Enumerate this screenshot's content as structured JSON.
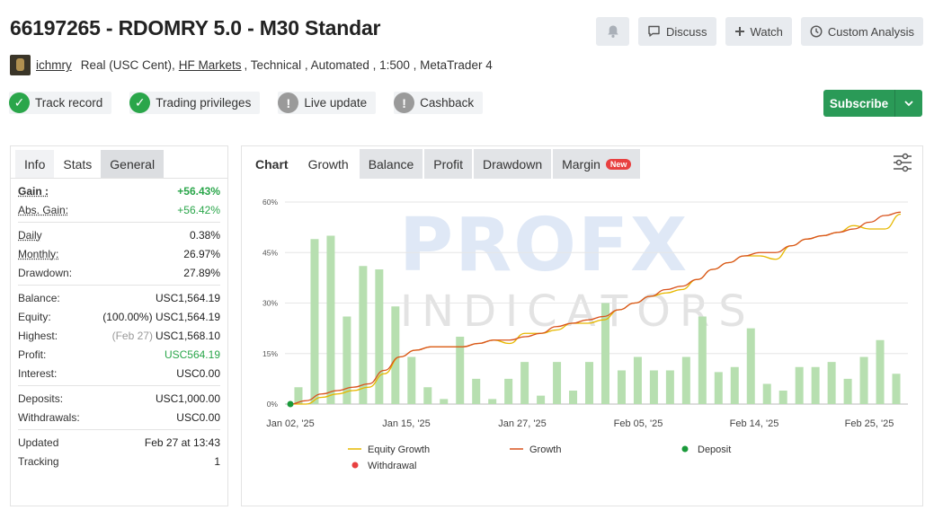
{
  "header": {
    "title": "66197265 - RDOMRY 5.0 - M30 Standar",
    "actions": {
      "discuss": "Discuss",
      "watch": "Watch",
      "custom_analysis": "Custom Analysis"
    }
  },
  "account": {
    "user": "ichmry",
    "type": "Real (USC Cent),",
    "broker": "HF Markets",
    "details": ", Technical , Automated , 1:500 , MetaTrader 4"
  },
  "badges": [
    {
      "label": "Track record",
      "status": "ok"
    },
    {
      "label": "Trading privileges",
      "status": "ok"
    },
    {
      "label": "Live update",
      "status": "warn"
    },
    {
      "label": "Cashback",
      "status": "warn"
    }
  ],
  "subscribe_label": "Subscribe",
  "left_tabs": [
    "Info",
    "Stats",
    "General"
  ],
  "stats": {
    "gain": {
      "k": "Gain :",
      "v": "+56.43%"
    },
    "abs_gain": {
      "k": "Abs. Gain:",
      "v": "+56.42%"
    },
    "daily": {
      "k": "Daily",
      "v": "0.38%"
    },
    "monthly": {
      "k": "Monthly:",
      "v": "26.97%"
    },
    "drawdown": {
      "k": "Drawdown:",
      "v": "27.89%"
    },
    "balance": {
      "k": "Balance:",
      "v": "USC1,564.19"
    },
    "equity": {
      "k": "Equity:",
      "pct": "(100.00%)",
      "v": "USC1,564.19"
    },
    "highest": {
      "k": "Highest:",
      "date": "(Feb 27)",
      "v": "USC1,568.10"
    },
    "profit": {
      "k": "Profit:",
      "v": "USC564.19"
    },
    "interest": {
      "k": "Interest:",
      "v": "USC0.00"
    },
    "deposits": {
      "k": "Deposits:",
      "v": "USC1,000.00"
    },
    "withdrawals": {
      "k": "Withdrawals:",
      "v": "USC0.00"
    },
    "updated": {
      "k": "Updated",
      "v": "Feb 27 at 13:43"
    },
    "tracking": {
      "k": "Tracking",
      "v": "1"
    }
  },
  "chart_tabs": {
    "chart": "Chart",
    "growth": "Growth",
    "balance": "Balance",
    "profit": "Profit",
    "drawdown": "Drawdown",
    "margin": "Margin",
    "new": "New"
  },
  "watermark": {
    "line1": "PROFX",
    "line2": "INDICATORS"
  },
  "chart_data": {
    "type": "bar+line",
    "ylim": [
      0,
      60
    ],
    "y_ticks": [
      "0%",
      "15%",
      "30%",
      "45%",
      "60%"
    ],
    "x_labels": [
      "Jan 02, '25",
      "Jan 15, '25",
      "Jan 27, '25",
      "Feb 05, '25",
      "Feb 14, '25",
      "Feb 25, '25"
    ],
    "bars": [
      5,
      49,
      50,
      26,
      41,
      40,
      29,
      14,
      5,
      1.5,
      20,
      7.5,
      1.5,
      7.5,
      12.5,
      2.5,
      12.5,
      4,
      12.5,
      30,
      10,
      14,
      10,
      10,
      14,
      26,
      9.5,
      11,
      22.5,
      6,
      4,
      11,
      11,
      12.5,
      7.5,
      14,
      19,
      9
    ],
    "growth": [
      0,
      1,
      3,
      4,
      5,
      6,
      10,
      14,
      16,
      17,
      17,
      17,
      18,
      19,
      19,
      20,
      21,
      23,
      24,
      25,
      26,
      28,
      30,
      32,
      34,
      35,
      37,
      40,
      42,
      44,
      45,
      45,
      47,
      49,
      50,
      51,
      52,
      54,
      56,
      57
    ],
    "equity_growth": [
      0,
      0,
      2,
      3,
      4,
      5,
      9,
      14,
      16,
      17,
      17,
      17,
      18,
      19,
      18,
      21,
      21,
      22,
      24,
      24,
      25,
      28,
      30,
      32,
      33,
      34,
      37,
      40,
      42,
      44,
      44,
      43,
      47,
      49,
      50,
      51,
      53,
      52,
      52,
      56.4
    ],
    "legend": [
      {
        "name": "Equity Growth",
        "color": "#e6b800",
        "kind": "line"
      },
      {
        "name": "Growth",
        "color": "#d9531e",
        "kind": "line"
      },
      {
        "name": "Deposit",
        "color": "#1a9a3a",
        "kind": "dot"
      },
      {
        "name": "Withdrawal",
        "color": "#e84040",
        "kind": "dot"
      }
    ]
  }
}
